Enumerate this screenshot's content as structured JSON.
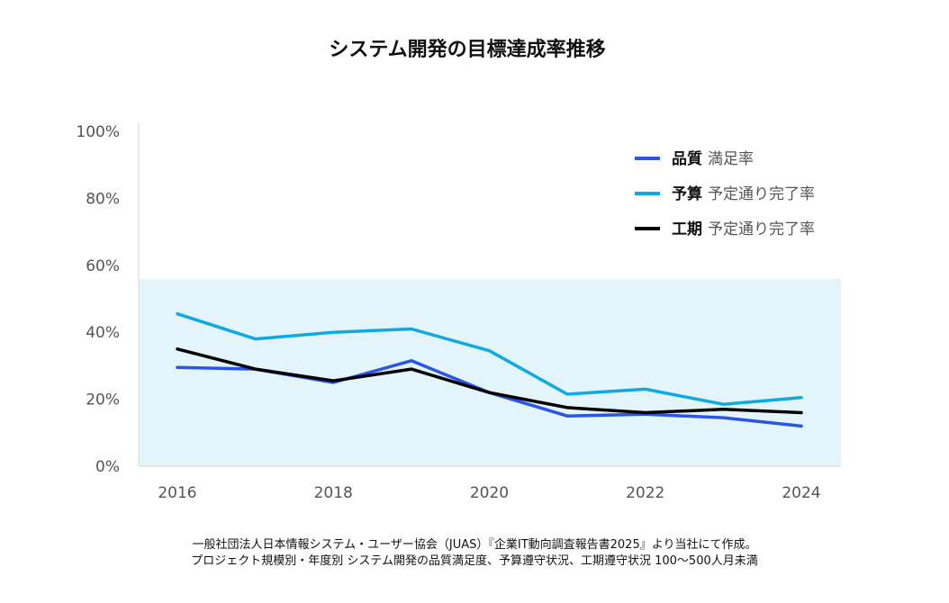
{
  "chart_data": {
    "type": "line",
    "title": "システム開発の目標達成率推移",
    "x": [
      2016,
      2017,
      2018,
      2019,
      2020,
      2021,
      2022,
      2023,
      2024
    ],
    "x_tick_labels": [
      "2016",
      "2018",
      "2020",
      "2022",
      "2024"
    ],
    "y_tick_labels": [
      "0%",
      "20%",
      "40%",
      "60%",
      "80%",
      "100%"
    ],
    "ylim": [
      0,
      100
    ],
    "grid": false,
    "shaded_band": {
      "from": 0,
      "to": 56,
      "color": "#e3f4fb"
    },
    "legend_position": "top-right",
    "series": [
      {
        "name": "品質 満足率",
        "legend_key": "品質",
        "legend_rest": "満足率",
        "color": "#2b55e6",
        "values": [
          29.5,
          29,
          25,
          31.5,
          22,
          15,
          15.5,
          14.5,
          12
        ]
      },
      {
        "name": "予算 予定通り完了率",
        "legend_key": "予算",
        "legend_rest": "予定通り完了率",
        "color": "#11a9e2",
        "values": [
          45.5,
          38,
          40,
          41,
          34.5,
          21.5,
          23,
          18.5,
          20.5
        ]
      },
      {
        "name": "工期 予定通り完了率",
        "legend_key": "工期",
        "legend_rest": "予定通り完了率",
        "color": "#000000",
        "values": [
          35,
          29,
          25.5,
          29,
          22,
          17.5,
          16,
          17,
          16
        ]
      }
    ]
  },
  "source": {
    "line1": "一般社団法人日本情報システム・ユーザー協会（JUAS）『企業IT動向調査報告書2025』より当社にて作成。",
    "line2": "プロジェクト規模別・年度別 システム開発の品質満足度、予算遵守状況、工期遵守状況 100〜500人月未満"
  }
}
